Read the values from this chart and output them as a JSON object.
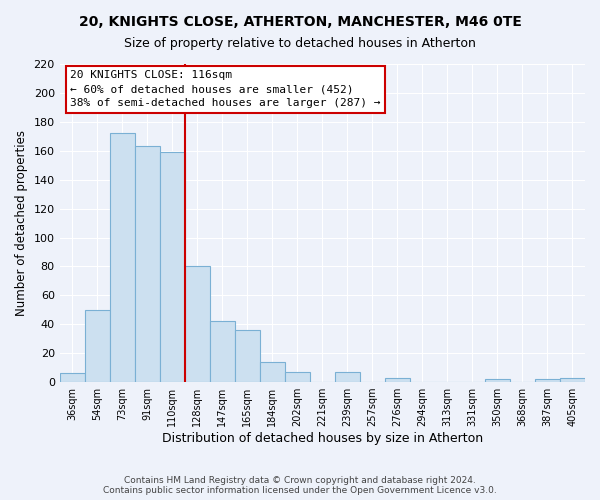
{
  "title": "20, KNIGHTS CLOSE, ATHERTON, MANCHESTER, M46 0TE",
  "subtitle": "Size of property relative to detached houses in Atherton",
  "xlabel": "Distribution of detached houses by size in Atherton",
  "ylabel": "Number of detached properties",
  "bar_labels": [
    "36sqm",
    "54sqm",
    "73sqm",
    "91sqm",
    "110sqm",
    "128sqm",
    "147sqm",
    "165sqm",
    "184sqm",
    "202sqm",
    "221sqm",
    "239sqm",
    "257sqm",
    "276sqm",
    "294sqm",
    "313sqm",
    "331sqm",
    "350sqm",
    "368sqm",
    "387sqm",
    "405sqm"
  ],
  "bar_values": [
    6,
    50,
    172,
    163,
    159,
    80,
    42,
    36,
    14,
    7,
    0,
    7,
    0,
    3,
    0,
    0,
    0,
    2,
    0,
    2,
    3
  ],
  "bar_color": "#cce0f0",
  "bar_edge_color": "#7ab0d4",
  "vline_x": 4.5,
  "vline_color": "#cc0000",
  "annotation_title": "20 KNIGHTS CLOSE: 116sqm",
  "annotation_line1": "← 60% of detached houses are smaller (452)",
  "annotation_line2": "38% of semi-detached houses are larger (287) →",
  "annotation_box_color": "#ffffff",
  "annotation_border_color": "#cc0000",
  "ylim": [
    0,
    220
  ],
  "yticks": [
    0,
    20,
    40,
    60,
    80,
    100,
    120,
    140,
    160,
    180,
    200,
    220
  ],
  "footer_line1": "Contains HM Land Registry data © Crown copyright and database right 2024.",
  "footer_line2": "Contains public sector information licensed under the Open Government Licence v3.0.",
  "fig_bg": "#eef2fa",
  "plot_bg": "#eef2fa"
}
